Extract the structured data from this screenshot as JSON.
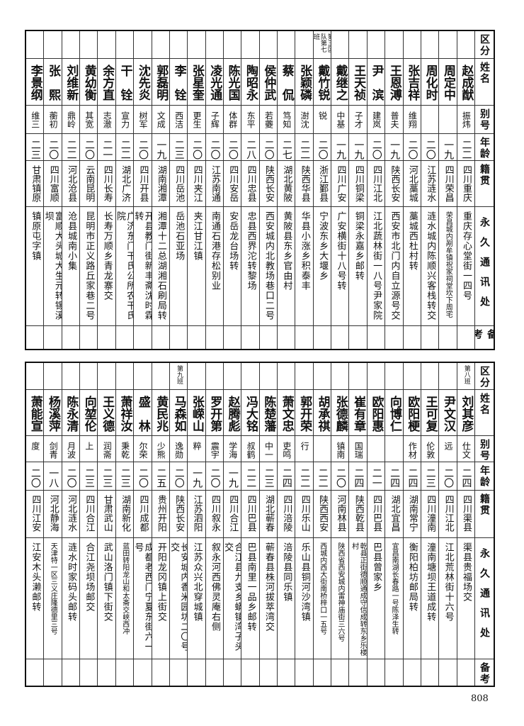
{
  "headers": {
    "group": "区分",
    "name": "姓名",
    "alias": "别号",
    "age": "年龄",
    "origin": "籍贯",
    "address": "永久通讯处",
    "remarks": "备考"
  },
  "top": [
    {
      "group": "",
      "name": "赵成猷",
      "alias": "振炜",
      "age": "二二",
      "origin": "四川重庆",
      "address": "重庆存心堂街一四号",
      "remarks": ""
    },
    {
      "group": "",
      "name": "周定中",
      "alias": "",
      "age": "一九",
      "origin": "四川荣昌",
      "address": "荣昌城内剐牟镇祝家祠堂坎下周宅",
      "remarks": ""
    },
    {
      "group": "",
      "name": "周化时",
      "alias": "",
      "age": "二〇",
      "origin": "江苏涟水",
      "address": "涟水城内陈顺兴客栈转交",
      "remarks": ""
    },
    {
      "group": "",
      "name": "张吉祥",
      "alias": "维翔",
      "age": "二〇",
      "origin": "河北藁城",
      "address": "藁城西杜村转",
      "remarks": ""
    },
    {
      "group": "",
      "name": "王恩溥",
      "alias": "普夫",
      "age": "一九",
      "origin": "陕西长安",
      "address": "西安市北门内自立源号交",
      "remarks": ""
    },
    {
      "group": "",
      "name": "尹　滨",
      "alias": "建岚",
      "age": "二〇",
      "origin": "四川江北",
      "address": "江北蔬林街一八号尹家院",
      "remarks": ""
    },
    {
      "group": "",
      "name": "王天祯",
      "alias": "子才",
      "age": "一九",
      "origin": "四川铜梁",
      "address": "铜梁永嘉乡邮转",
      "remarks": ""
    },
    {
      "group": "",
      "name": "戴继之",
      "alias": "中基",
      "age": "一九",
      "origin": "四川广安",
      "address": "广安横街十八号转",
      "remarks": ""
    },
    {
      "group": "第三区队第七班",
      "name": "戴竹锐",
      "alias": "锐",
      "age": "二〇",
      "origin": "浙江鄞县",
      "address": "宁波东乡大堰乡",
      "remarks": ""
    },
    {
      "group": "",
      "name": "张颖磷",
      "alias": "澍沈",
      "age": "二二",
      "origin": "陕西华县",
      "address": "华县小涨乡积泰丰",
      "remarks": ""
    },
    {
      "group": "",
      "name": "蔡　侃",
      "alias": "笃知",
      "age": "二七",
      "origin": "湖北黄陂",
      "address": "黄陂县东乡官由村",
      "remarks": ""
    },
    {
      "group": "",
      "name": "侯仲武",
      "alias": "若虁",
      "age": "二〇",
      "origin": "陕西长安",
      "address": "西安城内北教场巷口二号",
      "remarks": ""
    },
    {
      "group": "",
      "name": "陶昭永",
      "alias": "东平",
      "age": "二八",
      "origin": "四川忠县",
      "address": "忠县西界沱转黎场",
      "remarks": ""
    },
    {
      "group": "",
      "name": "陈光国",
      "alias": "体群",
      "age": "二〇",
      "origin": "四川安岳",
      "address": "安岳龙台场转",
      "remarks": ""
    },
    {
      "group": "",
      "name": "凌光通",
      "alias": "子辉",
      "age": "二〇",
      "origin": "江苏南通",
      "address": "南通石港存松别业",
      "remarks": ""
    },
    {
      "group": "",
      "name": "张星奎",
      "alias": "更生",
      "age": "二〇",
      "origin": "四川夹江",
      "address": "夹江甘江镇",
      "remarks": ""
    },
    {
      "group": "",
      "name": "李　铨",
      "alias": "西洁",
      "age": "二三",
      "origin": "四川岳池",
      "address": "岳池石亚场",
      "remarks": ""
    },
    {
      "group": "",
      "name": "郭磊明",
      "alias": "文成",
      "age": "一九",
      "origin": "湖南湘潭",
      "address": "湘潭十二总湖湘石刷局转",
      "remarks": ""
    },
    {
      "group": "",
      "name": "沈先炎",
      "alias": "树军",
      "age": "二〇",
      "origin": "四川开县",
      "address": "开县教门街新丰斋沈时霖转",
      "remarks": ""
    },
    {
      "group": "",
      "name": "干　铨",
      "alias": "宣力",
      "age": "二二",
      "origin": "湖北广济",
      "address": "广济东门干氏公所农干氏院",
      "remarks": ""
    },
    {
      "group": "",
      "name": "余方直",
      "alias": "志澈",
      "age": "二一",
      "origin": "四川长寿",
      "address": "长寿万顺乡青龙寨交",
      "remarks": ""
    },
    {
      "group": "",
      "name": "黄幼衡",
      "alias": "其宽",
      "age": "二〇",
      "origin": "云南昆明",
      "address": "昆明市正义路丘家巷二号",
      "remarks": ""
    },
    {
      "group": "",
      "name": "刘维新",
      "alias": "鼎岭",
      "age": "二二",
      "origin": "河北沧县",
      "address": "沧县城南小集",
      "remarks": ""
    },
    {
      "group": "",
      "name": "张　熙",
      "alias": "蘅初",
      "age": "二〇",
      "origin": "四川富顺",
      "address": "富顺大头城大生元转锡溪坝",
      "remarks": ""
    },
    {
      "group": "",
      "name": "李景纲",
      "alias": "维三",
      "age": "二三",
      "origin": "甘肃镇原",
      "address": "镇原屯字镇",
      "remarks": ""
    }
  ],
  "bottom": [
    {
      "group": "第八班",
      "name": "刘其彦",
      "alias": "仕文",
      "age": "二四",
      "origin": "四川渠县",
      "address": "渠县贵福场交",
      "remarks": ""
    },
    {
      "group": "",
      "name": "尹文汉",
      "alias": "远",
      "age": "二〇",
      "origin": "四川江北",
      "address": "江北荒林街十六号",
      "remarks": ""
    },
    {
      "group": "",
      "name": "王可复",
      "alias": "伦敦",
      "age": "二三",
      "origin": "四川潼南",
      "address": "潼南塘坝王道成转",
      "remarks": ""
    },
    {
      "group": "",
      "name": "欧阳梗",
      "alias": "作材",
      "age": "二四",
      "origin": "湖南常宁",
      "address": "衡阳柏坊邮局转",
      "remarks": ""
    },
    {
      "group": "",
      "name": "向博仁",
      "alias": "",
      "age": "二四",
      "origin": "湖北宜昌",
      "address": "宜昌南湖长春路一号陈泽生转",
      "remarks": ""
    },
    {
      "group": "",
      "name": "欧阳惠",
      "alias": "",
      "age": "二一",
      "origin": "四川巴县",
      "address": "巴县曾家乡",
      "remarks": ""
    },
    {
      "group": "",
      "name": "崔有章",
      "alias": "国瑞",
      "age": "二四",
      "origin": "陕西乾县",
      "address": "乾县正街德顺通成守信成转东乡乐楼村",
      "remarks": ""
    },
    {
      "group": "",
      "name": "张德麟",
      "alias": "镇南",
      "age": "二〇",
      "origin": "河南林县",
      "address": "陕西省西安城内雷神庙街三六号",
      "remarks": ""
    },
    {
      "group": "",
      "name": "胡承祺",
      "alias": "",
      "age": "二二",
      "origin": "陕西西安",
      "address": "西城内西大街南桥梓口一五号",
      "remarks": ""
    },
    {
      "group": "",
      "name": "郭开荣",
      "alias": "行",
      "age": "二二",
      "origin": "四川乐山",
      "address": "乐山县铜河沙湾镇",
      "remarks": ""
    },
    {
      "group": "",
      "name": "萧文忠",
      "alias": "吏鸣",
      "age": "二四",
      "origin": "四川涪陵",
      "address": "涪陵县同乐镇",
      "remarks": ""
    },
    {
      "group": "",
      "name": "陈楚藩",
      "alias": "中一",
      "age": "二三",
      "origin": "湖北蕲春",
      "address": "蕲春县株河拔萃湾交",
      "remarks": ""
    },
    {
      "group": "",
      "name": "冯大铭",
      "alias": "叔鹤",
      "age": "二二",
      "origin": "四川巴县",
      "address": "巴县南里一品乡邮转",
      "remarks": ""
    },
    {
      "group": "",
      "name": "赵腾彪",
      "alias": "学海",
      "age": "一九",
      "origin": "四川合江",
      "address": "合江县九支乡蟒镇湾子头交",
      "remarks": ""
    },
    {
      "group": "",
      "name": "罗开第",
      "alias": "震宇",
      "age": "二〇",
      "origin": "四川叙永",
      "address": "叙永河西佛灵庵右侧",
      "remarks": ""
    },
    {
      "group": "",
      "name": "张嵘山",
      "alias": "粹",
      "age": "一九",
      "origin": "江苏泗阳",
      "address": "江苏众兴北穿城镇",
      "remarks": ""
    },
    {
      "group": "第九班",
      "name": "马森如",
      "alias": "逸勋",
      "age": "二〇",
      "origin": "陕西长安",
      "address": "长安城内香米园坊二〇号交",
      "remarks": ""
    },
    {
      "group": "",
      "name": "黄民兆",
      "alias": "少熊",
      "age": "二五",
      "origin": "贵州开阳",
      "address": "开阳龙冈镇上街交",
      "remarks": ""
    },
    {
      "group": "",
      "name": "盛　林",
      "alias": "尔荣",
      "age": "二〇",
      "origin": "四川成都",
      "address": "成都老西门宁夏东街六一号",
      "remarks": ""
    },
    {
      "group": "",
      "name": "萧祥汝",
      "alias": "秉乾",
      "age": "二三",
      "origin": "湖南新化",
      "address": "蓝田转阳龙山和太斋交峡西冲",
      "remarks": ""
    },
    {
      "group": "",
      "name": "王义德",
      "alias": "润斋",
      "age": "二三",
      "origin": "甘肃武山",
      "address": "武山洛门镇下街交",
      "remarks": ""
    },
    {
      "group": "",
      "name": "向堃伦",
      "alias": "上",
      "age": "二三",
      "origin": "四川合江",
      "address": "合江尧坝场邮交",
      "remarks": ""
    },
    {
      "group": "",
      "name": "陈永清",
      "alias": "月波",
      "age": "二〇",
      "origin": "河北涟水",
      "address": "涟水时家码头邮转",
      "remarks": ""
    },
    {
      "group": "",
      "name": "杨溪萍",
      "alias": "剑青",
      "age": "一八",
      "origin": "河北静海",
      "address": "天津特一区三义庄隆德里三号",
      "remarks": ""
    },
    {
      "group": "",
      "name": "萧能宣",
      "alias": "度",
      "age": "二〇",
      "origin": "四川江安",
      "address": "江安木头濑邮转",
      "remarks": ""
    }
  ],
  "page_number": "808"
}
